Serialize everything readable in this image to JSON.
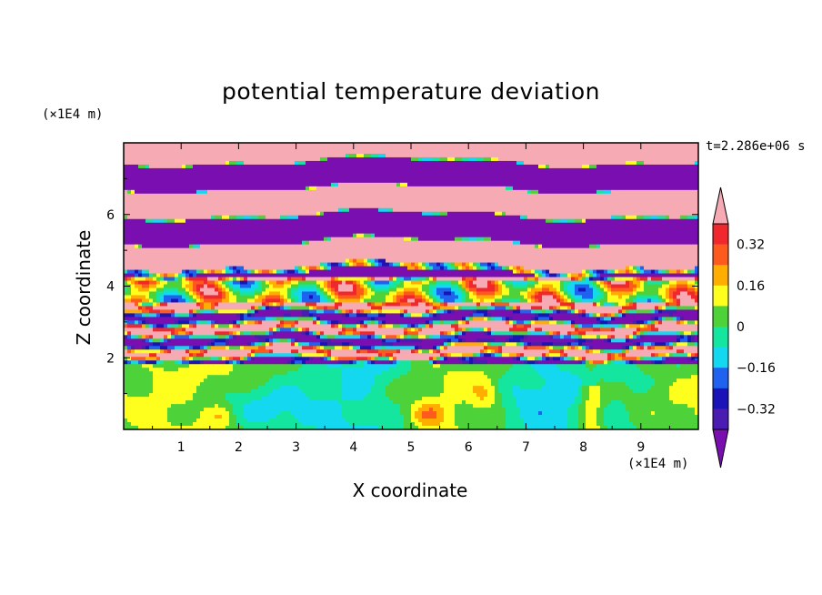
{
  "chart_data": {
    "type": "heatmap",
    "title": "potential temperature deviation",
    "xlabel": "X coordinate",
    "ylabel": "Z coordinate",
    "x_unit_label": "(×1E4 m)",
    "y_unit_label": "(×1E4 m)",
    "time_label": "t=2.286e+06 s",
    "xlim": [
      0,
      10
    ],
    "ylim": [
      0,
      8
    ],
    "x_ticks": [
      "1",
      "2",
      "3",
      "4",
      "5",
      "6",
      "7",
      "8",
      "9"
    ],
    "y_ticks": [
      "2",
      "4",
      "6"
    ],
    "colorbar": {
      "levels": [
        -0.4,
        -0.32,
        -0.24,
        -0.16,
        -0.08,
        0,
        0.08,
        0.16,
        0.24,
        0.32,
        0.4
      ],
      "labels": [
        "0.32",
        "0.16",
        "0",
        "−0.16",
        "−0.32"
      ],
      "label_values": [
        0.32,
        0.16,
        0,
        -0.16,
        -0.32
      ],
      "colors": [
        "#7a0fb0",
        "#4a1cb2",
        "#1a14b8",
        "#1f62f0",
        "#14d8f0",
        "#14e6a0",
        "#4ed23a",
        "#ffff1e",
        "#ffae00",
        "#ff5a1e",
        "#f0282d",
        "#f5aab4"
      ],
      "extend": "both"
    },
    "layers": [
      {
        "z_range": [
          6.0,
          8.0
        ],
        "pattern": "alternating pink and purple bands, values above 0.40 and below -0.40"
      },
      {
        "z_range": [
          4.2,
          6.0
        ],
        "pattern": "pink and purple bands with thin mixed transitions"
      },
      {
        "z_range": [
          2.0,
          4.2
        ],
        "pattern": "turbulent mixed layer, all color levels"
      },
      {
        "z_range": [
          0.0,
          1.8
        ],
        "pattern": "green and cyan with yellow and red eddies"
      }
    ]
  }
}
